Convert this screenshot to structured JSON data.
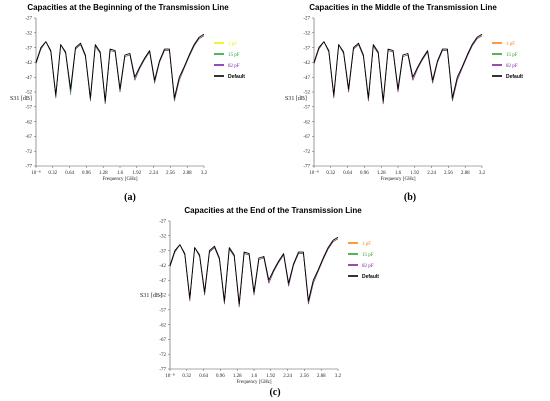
{
  "colors": {
    "c1": "#ff7f0e",
    "c2": "#2ca02c",
    "c3": "#7b1fa2",
    "c1_panel_a": "#f2f200",
    "default": "#000000"
  },
  "chart_data": [
    {
      "type": "line",
      "panel_label": "(a)",
      "title": "Capacities at the Beginning of the Transmission Line",
      "xlabel": "Frequency [GHz]",
      "ylabel": "S31 [dB]",
      "xlim": [
        0,
        3.2
      ],
      "ylim": [
        -77,
        -27
      ],
      "xticks": [
        "10⁻⁸",
        "0.32",
        "0.64",
        "0.96",
        "1.28",
        "1.6",
        "1.92",
        "2.24",
        "2.56",
        "2.88",
        "3.2"
      ],
      "yticks": [
        -27,
        -32,
        -37,
        -42,
        -47,
        -52,
        -57,
        -62,
        -67,
        -72,
        -77
      ],
      "legend": "right",
      "series": [
        {
          "name": "1 pF",
          "color_key": "c1_panel_a",
          "values": [
            -42.5,
            -37.5,
            -35,
            -38.5,
            -54,
            -36,
            -39,
            -52,
            -37.5,
            -36,
            -40,
            -55,
            -36.5,
            -39,
            -56,
            -38,
            -38.5,
            -52,
            -40,
            -39.5,
            -48,
            -44,
            -41,
            -38.5,
            -49,
            -42,
            -38,
            -38,
            -55,
            -48,
            -44,
            -40,
            -36.5,
            -34,
            -33
          ]
        },
        {
          "name": "15 pF",
          "color_key": "c2",
          "values": [
            -42.5,
            -37.5,
            -35,
            -38.5,
            -54,
            -36,
            -39,
            -53,
            -37.5,
            -36,
            -40,
            -55,
            -36.5,
            -39,
            -56,
            -38,
            -38.5,
            -52,
            -40,
            -39.5,
            -48,
            -44,
            -41,
            -38.5,
            -49,
            -42,
            -38,
            -38,
            -55,
            -48,
            -44,
            -40,
            -36.5,
            -34,
            -33
          ]
        },
        {
          "name": "82 pF",
          "color_key": "c3",
          "values": [
            -42.5,
            -37.5,
            -35,
            -38.5,
            -54,
            -36,
            -39,
            -52,
            -37.5,
            -36,
            -40,
            -55,
            -36.5,
            -39,
            -56,
            -38,
            -38.5,
            -52,
            -40,
            -39.5,
            -48,
            -44,
            -41,
            -38.5,
            -49,
            -42,
            -38,
            -38,
            -55,
            -48,
            -44,
            -40,
            -36.5,
            -34,
            -33
          ]
        },
        {
          "name": "Default",
          "color_key": "default",
          "values": [
            -42,
            -37,
            -35,
            -38,
            -53,
            -36,
            -38.5,
            -51,
            -37,
            -35.5,
            -39.5,
            -54,
            -36,
            -38.5,
            -55,
            -37.5,
            -38,
            -51,
            -39.5,
            -39,
            -47,
            -43.5,
            -40.5,
            -38,
            -48,
            -41.5,
            -37.5,
            -37.5,
            -54,
            -47,
            -43.5,
            -39.5,
            -36,
            -33.5,
            -32.5
          ]
        }
      ]
    },
    {
      "type": "line",
      "panel_label": "(b)",
      "title": "Capacities in the Middle of the Transmission Line",
      "xlabel": "Frequency [GHz]",
      "ylabel": "S31 [dB]",
      "xlim": [
        0,
        3.2
      ],
      "ylim": [
        -77,
        -27
      ],
      "xticks": [
        "10⁻⁸",
        "0.32",
        "0.64",
        "0.96",
        "1.28",
        "1.6",
        "1.92",
        "2.24",
        "2.56",
        "2.88",
        "3.2"
      ],
      "yticks": [
        -27,
        -32,
        -37,
        -42,
        -47,
        -52,
        -57,
        -62,
        -67,
        -72,
        -77
      ],
      "legend": "right",
      "series": [
        {
          "name": "1 pF",
          "color_key": "c1",
          "values": [
            -42.5,
            -37.5,
            -35,
            -38.5,
            -54,
            -36,
            -39,
            -52,
            -37.5,
            -36,
            -40,
            -55,
            -36.5,
            -39,
            -56,
            -38,
            -38.5,
            -52,
            -40,
            -39.5,
            -48,
            -44,
            -41,
            -38.5,
            -49,
            -42,
            -38,
            -38,
            -55,
            -48,
            -44,
            -40,
            -36.5,
            -34,
            -33
          ]
        },
        {
          "name": "15 pF",
          "color_key": "c2",
          "values": [
            -42.5,
            -37.5,
            -35,
            -38.5,
            -54,
            -36,
            -39,
            -52,
            -37.5,
            -36,
            -40,
            -55,
            -36.5,
            -39,
            -56,
            -38,
            -38.5,
            -52,
            -40,
            -39.5,
            -48,
            -44,
            -41,
            -38.5,
            -49,
            -42,
            -38,
            -38,
            -55,
            -48,
            -44,
            -40,
            -36.5,
            -34,
            -33
          ]
        },
        {
          "name": "82 pF",
          "color_key": "c3",
          "values": [
            -42.5,
            -37.5,
            -35,
            -38.5,
            -54,
            -36,
            -39,
            -52,
            -37.5,
            -36,
            -40,
            -55,
            -36.5,
            -39,
            -56,
            -38,
            -38.5,
            -52,
            -40,
            -39.5,
            -48,
            -44,
            -41,
            -38.5,
            -49,
            -42,
            -38,
            -38,
            -55,
            -48,
            -44,
            -40,
            -36.5,
            -34,
            -33
          ]
        },
        {
          "name": "Default",
          "color_key": "default",
          "values": [
            -42,
            -37,
            -35,
            -38,
            -53,
            -36,
            -38.5,
            -51,
            -37,
            -35.5,
            -39.5,
            -54,
            -36,
            -38.5,
            -55,
            -37.5,
            -38,
            -51,
            -39.5,
            -39,
            -47,
            -43.5,
            -40.5,
            -38,
            -48,
            -41.5,
            -37.5,
            -37.5,
            -54,
            -47,
            -43.5,
            -39.5,
            -36,
            -33.5,
            -32.5
          ]
        }
      ]
    },
    {
      "type": "line",
      "panel_label": "(c)",
      "title": "Capacities at the End of the Transmission Line",
      "xlabel": "Frequency [GHz]",
      "ylabel": "S31 [dB]",
      "xlim": [
        0,
        3.2
      ],
      "ylim": [
        -77,
        -27
      ],
      "xticks": [
        "10⁻⁸",
        "0.32",
        "0.64",
        "0.96",
        "1.28",
        "1.6",
        "1.92",
        "2.24",
        "2.56",
        "2.88",
        "3.2"
      ],
      "yticks": [
        -27,
        -32,
        -37,
        -42,
        -47,
        -52,
        -57,
        -62,
        -67,
        -72,
        -77
      ],
      "legend": "right",
      "series": [
        {
          "name": "1 pF",
          "color_key": "c1",
          "values": [
            -42.5,
            -37.5,
            -35,
            -38.5,
            -54,
            -36,
            -39,
            -52,
            -37.5,
            -36,
            -40,
            -55,
            -36.5,
            -39,
            -56,
            -38,
            -38.5,
            -52,
            -40,
            -39.5,
            -48,
            -44,
            -41,
            -38.5,
            -49,
            -42,
            -38,
            -38,
            -55,
            -48,
            -44,
            -40,
            -36.5,
            -34,
            -33
          ]
        },
        {
          "name": "15 pF",
          "color_key": "c2",
          "values": [
            -42.5,
            -37.5,
            -35,
            -38.5,
            -54,
            -36,
            -39,
            -52,
            -37.5,
            -36,
            -40,
            -55,
            -36.5,
            -39,
            -56,
            -38,
            -38.5,
            -52,
            -40,
            -39.5,
            -48,
            -44,
            -41,
            -38.5,
            -49,
            -42,
            -38,
            -38,
            -55,
            -48,
            -44,
            -40,
            -36.5,
            -34,
            -33
          ]
        },
        {
          "name": "82 pF",
          "color_key": "c3",
          "values": [
            -42.5,
            -37.5,
            -35,
            -38.5,
            -54,
            -36,
            -39,
            -52,
            -37.5,
            -36,
            -40,
            -55,
            -36.5,
            -39,
            -56,
            -38,
            -38.5,
            -52,
            -40,
            -39.5,
            -48,
            -44,
            -41,
            -38.5,
            -49,
            -42,
            -38,
            -38,
            -55,
            -48,
            -44,
            -40,
            -36.5,
            -34,
            -33
          ]
        },
        {
          "name": "Default",
          "color_key": "default",
          "values": [
            -42,
            -37,
            -35,
            -38,
            -53,
            -36,
            -38.5,
            -51,
            -37,
            -35.5,
            -39.5,
            -54,
            -36,
            -38.5,
            -55,
            -37.5,
            -38,
            -51,
            -39.5,
            -39,
            -47,
            -43.5,
            -40.5,
            -38,
            -48,
            -41.5,
            -37.5,
            -37.5,
            -54,
            -47,
            -43.5,
            -39.5,
            -36,
            -33.5,
            -32.5
          ]
        }
      ]
    }
  ]
}
